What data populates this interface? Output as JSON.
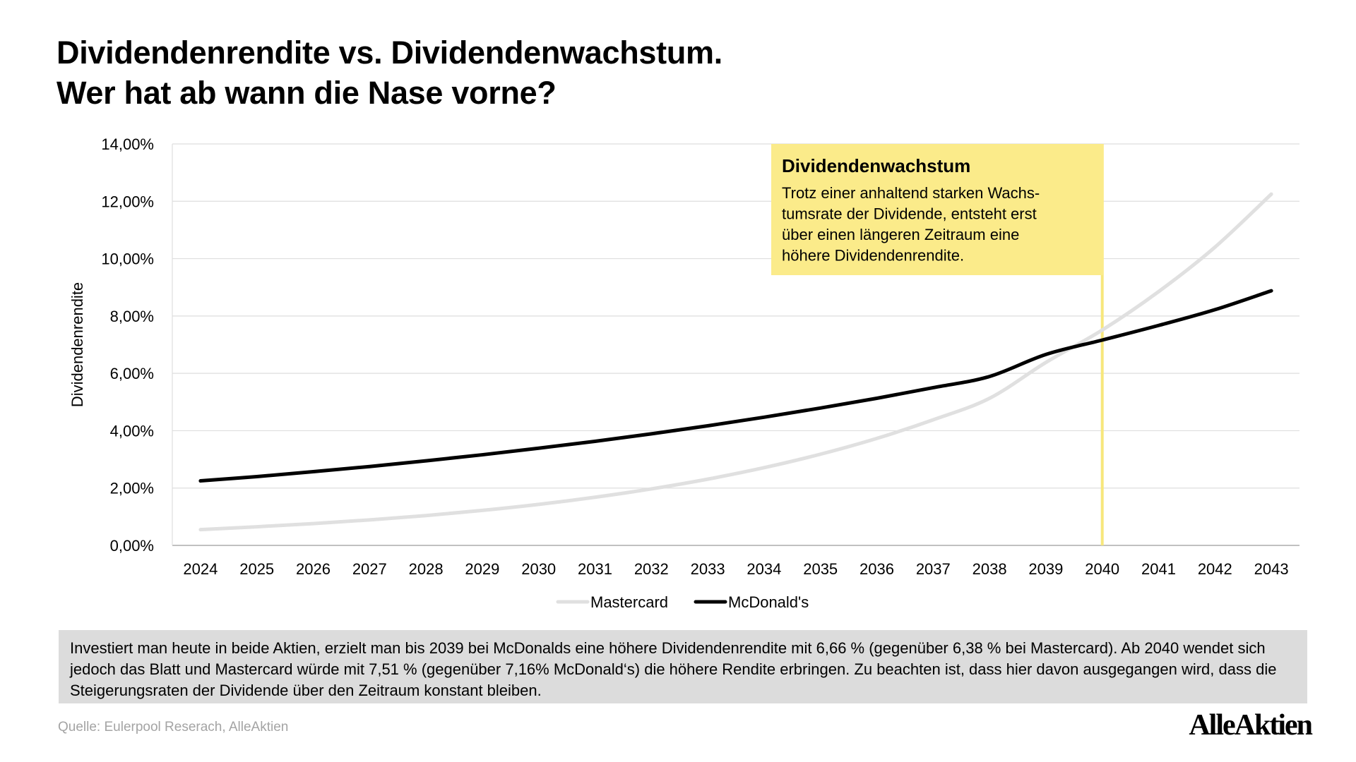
{
  "title": {
    "line1": "Dividendenrendite vs. Dividendenwachstum.",
    "line2": "Wer hat ab wann die Nase vorne?"
  },
  "chart_data": {
    "type": "line",
    "ylabel": "Dividendenrendite",
    "xlabel": "",
    "ylim": [
      0,
      14
    ],
    "yticks": [
      "0,00%",
      "2,00%",
      "4,00%",
      "6,00%",
      "8,00%",
      "10,00%",
      "12,00%",
      "14,00%"
    ],
    "x": [
      "2024",
      "2025",
      "2026",
      "2027",
      "2028",
      "2029",
      "2030",
      "2031",
      "2032",
      "2033",
      "2034",
      "2035",
      "2036",
      "2037",
      "2038",
      "2039",
      "2040",
      "2041",
      "2042",
      "2043"
    ],
    "grid": true,
    "legend_position": "bottom-center",
    "series": [
      {
        "name": "Mastercard",
        "color": "#e0e0e0",
        "values": [
          0.55,
          0.65,
          0.76,
          0.89,
          1.04,
          1.22,
          1.43,
          1.68,
          1.97,
          2.31,
          2.71,
          3.18,
          3.73,
          4.38,
          5.13,
          6.38,
          7.51,
          8.85,
          10.4,
          12.25
        ]
      },
      {
        "name": "McDonald's",
        "color": "#000000",
        "values": [
          2.25,
          2.4,
          2.57,
          2.75,
          2.95,
          3.16,
          3.39,
          3.63,
          3.89,
          4.17,
          4.47,
          4.79,
          5.13,
          5.5,
          5.89,
          6.66,
          7.16,
          7.67,
          8.22,
          8.88
        ]
      }
    ],
    "annotation": {
      "x": "2040",
      "title": "Dividendenwachstum",
      "lines": [
        "Trotz einer anhaltend starken Wachs-",
        "tumsrate der Dividende, entsteht erst",
        "über einen längeren Zeitraum eine",
        "höhere Dividendenrendite."
      ],
      "color": "#fbeb8a",
      "line_color": "#f7e77c"
    }
  },
  "summary": "Investiert man heute in beide Aktien, erzielt man bis 2039 bei McDonalds eine höhere Dividendenrendite mit 6,66 % (gegenüber 6,38 % bei Mastercard). Ab 2040 wendet sich jedoch das Blatt und Mastercard würde mit 7,51 % (gegenüber 7,16% McDonald‘s) die höhere Rendite erbringen. Zu beachten ist, dass hier davon ausgegangen wird, dass die Steigerungsraten der Dividende über den Zeitraum konstant bleiben.",
  "source": "Quelle: Eulerpool Reserach, AlleAktien",
  "logo": "AlleAktien"
}
